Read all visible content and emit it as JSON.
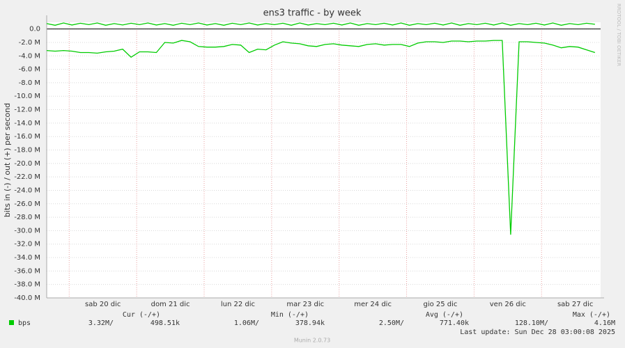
{
  "chart_data": {
    "type": "line",
    "title": "ens3 traffic - by week",
    "y_label": "bits in (-) / out (+) per second",
    "x": [
      0,
      3,
      6,
      9,
      12,
      15,
      18,
      21,
      24,
      27,
      30,
      33,
      36,
      39,
      42,
      45,
      48,
      51,
      54,
      57,
      60,
      63,
      66,
      69,
      72,
      75,
      78,
      81,
      84,
      87,
      90,
      93,
      96,
      99,
      102,
      105,
      108,
      111,
      114,
      117,
      120,
      123,
      126,
      129,
      132,
      135,
      138,
      141,
      144,
      147,
      150,
      153,
      156,
      159,
      162,
      165,
      168,
      171,
      174,
      177,
      180,
      183,
      186,
      189,
      192,
      195
    ],
    "series": [
      {
        "name": "bps",
        "color": "#00cc00",
        "values": [
          -3200000,
          -3300000,
          -3200000,
          -3300000,
          -3500000,
          -3500000,
          -3600000,
          -3400000,
          -3300000,
          -3000000,
          -4200000,
          -3400000,
          -3400000,
          -3500000,
          -2000000,
          -2100000,
          -1700000,
          -1900000,
          -2600000,
          -2700000,
          -2700000,
          -2600000,
          -2300000,
          -2400000,
          -3500000,
          -3000000,
          -3100000,
          -2400000,
          -1900000,
          -2100000,
          -2200000,
          -2500000,
          -2600000,
          -2300000,
          -2200000,
          -2400000,
          -2500000,
          -2600000,
          -2300000,
          -2200000,
          -2400000,
          -2300000,
          -2300000,
          -2600000,
          -2100000,
          -1900000,
          -1900000,
          -2000000,
          -1800000,
          -1800000,
          -1900000,
          -1800000,
          -1800000,
          -1700000,
          -1700000,
          -30600000,
          -1900000,
          -1900000,
          -2000000,
          -2100000,
          -2400000,
          -2800000,
          -2600000,
          -2700000,
          -3100000,
          -3500000
        ]
      },
      {
        "color": "#00cc00",
        "values": [
          800000,
          550000,
          900000,
          600000,
          850000,
          650000,
          900000,
          550000,
          800000,
          600000,
          850000,
          650000,
          900000,
          600000,
          800000,
          550000,
          850000,
          650000,
          900000,
          600000,
          800000,
          550000,
          850000,
          650000,
          900000,
          600000,
          800000,
          650000,
          850000,
          550000,
          900000,
          600000,
          800000,
          650000,
          850000,
          600000,
          900000,
          550000,
          800000,
          650000,
          850000,
          600000,
          900000,
          550000,
          800000,
          650000,
          850000,
          600000,
          900000,
          550000,
          800000,
          650000,
          850000,
          600000,
          900000,
          550000,
          800000,
          650000,
          850000,
          600000,
          900000,
          550000,
          800000,
          650000,
          850000,
          700000
        ]
      }
    ],
    "xlim": [
      0,
      197
    ],
    "xticks": [
      {
        "value": 8,
        "label": "sab 20 dic"
      },
      {
        "value": 32,
        "label": "dom 21 dic"
      },
      {
        "value": 56,
        "label": "lun 22 dic"
      },
      {
        "value": 80,
        "label": "mar 23 dic"
      },
      {
        "value": 104,
        "label": "mer 24 dic"
      },
      {
        "value": 128,
        "label": "gio 25 dic"
      },
      {
        "value": 152,
        "label": "ven 26 dic"
      },
      {
        "value": 176,
        "label": "sab 27 dic"
      }
    ],
    "ylim": [
      -40000000,
      1000000
    ],
    "yticks": [
      {
        "value": 0,
        "label": "0.0"
      },
      {
        "value": -2000000,
        "label": "-2.0 M"
      },
      {
        "value": -4000000,
        "label": "-4.0 M"
      },
      {
        "value": -6000000,
        "label": "-6.0 M"
      },
      {
        "value": -8000000,
        "label": "-8.0 M"
      },
      {
        "value": -10000000,
        "label": "-10.0 M"
      },
      {
        "value": -12000000,
        "label": "-12.0 M"
      },
      {
        "value": -14000000,
        "label": "-14.0 M"
      },
      {
        "value": -16000000,
        "label": "-16.0 M"
      },
      {
        "value": -18000000,
        "label": "-18.0 M"
      },
      {
        "value": -20000000,
        "label": "-20.0 M"
      },
      {
        "value": -22000000,
        "label": "-22.0 M"
      },
      {
        "value": -24000000,
        "label": "-24.0 M"
      },
      {
        "value": -26000000,
        "label": "-26.0 M"
      },
      {
        "value": -28000000,
        "label": "-28.0 M"
      },
      {
        "value": -30000000,
        "label": "-30.0 M"
      },
      {
        "value": -32000000,
        "label": "-32.0 M"
      },
      {
        "value": -34000000,
        "label": "-34.0 M"
      },
      {
        "value": -36000000,
        "label": "-36.0 M"
      },
      {
        "value": -38000000,
        "label": "-38.0 M"
      },
      {
        "value": -40000000,
        "label": "-40.0 M"
      }
    ],
    "grid": true,
    "summary": {
      "headers": [
        "Cur (-/+)",
        "Min (-/+)",
        "Avg (-/+)",
        "Max (-/+)"
      ],
      "cells": [
        "3.32M/",
        "498.51k",
        "1.06M/",
        "378.94k",
        "2.50M/",
        "771.40k",
        "128.10M/",
        "4.16M"
      ]
    },
    "last_update": "Last update: Sun Dec 28 03:00:08 2025",
    "credit": "RRDTOOL / TOBI OETIKER",
    "version": "Munin 2.0.73"
  }
}
